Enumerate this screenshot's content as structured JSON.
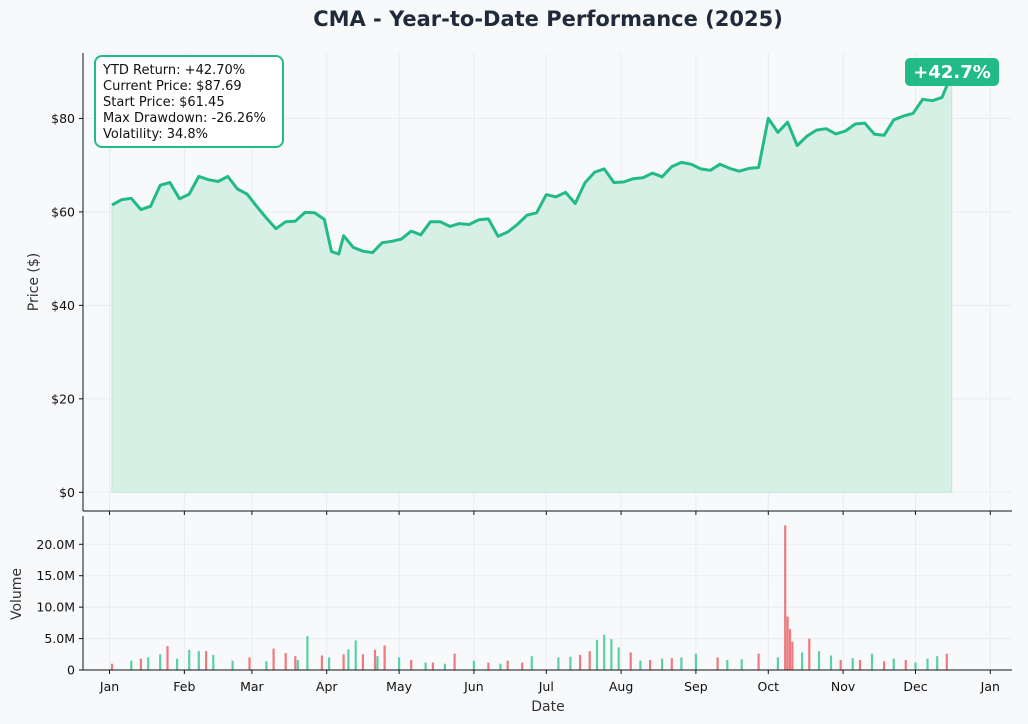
{
  "colors": {
    "line": "#22bb88",
    "fill": "#d6f0e6",
    "up_volume": "#5ccfa6",
    "down_volume": "#ee7a7d",
    "badge": "#22bb88",
    "grid": "#e9ecf1"
  },
  "chart_data": [
    {
      "type": "area",
      "title": "CMA - Year-to-Date Performance (2025)",
      "ylabel": "Price ($)",
      "ylim": [
        -4,
        94
      ],
      "y_ticks": [
        0,
        20,
        40,
        60,
        80
      ],
      "y_tick_labels": [
        "$0",
        "$20",
        "$40",
        "$60",
        "$80"
      ],
      "x_ticks": [
        "2025-01-01",
        "2025-02-01",
        "2025-03-01",
        "2025-04-01",
        "2025-05-01",
        "2025-06-01",
        "2025-07-01",
        "2025-08-01",
        "2025-09-01",
        "2025-10-01",
        "2025-11-01",
        "2025-12-01",
        "2026-01-01"
      ],
      "x_tick_labels": [
        "Jan",
        "Feb",
        "Mar",
        "Apr",
        "May",
        "Jun",
        "Jul",
        "Aug",
        "Sep",
        "Oct",
        "Nov",
        "Dec",
        "Jan"
      ],
      "grid": true,
      "stats": [
        "YTD Return: +42.70%",
        "Current Price: $87.69",
        "Start Price: $61.45",
        "Max Drawdown: -26.26%",
        "Volatility: 34.8%"
      ],
      "badge": "+42.7%",
      "series": [
        {
          "x": [
            "2025-01-02",
            "2025-01-06",
            "2025-01-10",
            "2025-01-14",
            "2025-01-18",
            "2025-01-22",
            "2025-01-26",
            "2025-01-30",
            "2025-02-03",
            "2025-02-07",
            "2025-02-11",
            "2025-02-15",
            "2025-02-19",
            "2025-02-23",
            "2025-02-27",
            "2025-03-03",
            "2025-03-07",
            "2025-03-11",
            "2025-03-15",
            "2025-03-19",
            "2025-03-23",
            "2025-03-27",
            "2025-03-31",
            "2025-04-03",
            "2025-04-06",
            "2025-04-08",
            "2025-04-12",
            "2025-04-16",
            "2025-04-20",
            "2025-04-24",
            "2025-04-28",
            "2025-05-02",
            "2025-05-06",
            "2025-05-10",
            "2025-05-14",
            "2025-05-18",
            "2025-05-22",
            "2025-05-26",
            "2025-05-30",
            "2025-06-03",
            "2025-06-07",
            "2025-06-11",
            "2025-06-15",
            "2025-06-19",
            "2025-06-23",
            "2025-06-27",
            "2025-07-01",
            "2025-07-05",
            "2025-07-09",
            "2025-07-13",
            "2025-07-17",
            "2025-07-21",
            "2025-07-25",
            "2025-07-29",
            "2025-08-02",
            "2025-08-06",
            "2025-08-10",
            "2025-08-14",
            "2025-08-18",
            "2025-08-22",
            "2025-08-26",
            "2025-08-30",
            "2025-09-03",
            "2025-09-07",
            "2025-09-11",
            "2025-09-15",
            "2025-09-19",
            "2025-09-23",
            "2025-09-27",
            "2025-10-01",
            "2025-10-05",
            "2025-10-09",
            "2025-10-13",
            "2025-10-17",
            "2025-10-21",
            "2025-10-25",
            "2025-10-29",
            "2025-11-02",
            "2025-11-06",
            "2025-11-10",
            "2025-11-14",
            "2025-11-18",
            "2025-11-22",
            "2025-11-26",
            "2025-11-30",
            "2025-12-04",
            "2025-12-08",
            "2025-12-12",
            "2025-12-16"
          ],
          "y": [
            61.5,
            62.6,
            62.9,
            60.5,
            61.2,
            65.7,
            66.3,
            62.8,
            63.8,
            67.6,
            66.9,
            66.5,
            67.6,
            64.9,
            63.8,
            61.2,
            58.7,
            56.4,
            57.9,
            58.0,
            59.9,
            59.8,
            58.4,
            51.5,
            51.0,
            54.9,
            52.4,
            51.6,
            51.3,
            53.4,
            53.7,
            54.2,
            55.9,
            55.1,
            57.9,
            57.9,
            56.9,
            57.5,
            57.3,
            58.3,
            58.5,
            54.8,
            55.7,
            57.3,
            59.3,
            59.8,
            63.7,
            63.2,
            64.2,
            61.8,
            66.2,
            68.5,
            69.2,
            66.3,
            66.4,
            67.1,
            67.3,
            68.3,
            67.5,
            69.7,
            70.6,
            70.2,
            69.2,
            68.9,
            70.2,
            69.3,
            68.7,
            69.3,
            69.5,
            80.0,
            77.0,
            79.2,
            74.2,
            76.2,
            77.5,
            77.8,
            76.7,
            77.3,
            78.8,
            79.0,
            76.6,
            76.4,
            79.7,
            80.5,
            81.1,
            84.1,
            83.8,
            84.5,
            89.5
          ]
        }
      ]
    },
    {
      "type": "bar",
      "xlabel": "Date",
      "ylabel": "Volume",
      "ylim": [
        0,
        24.5
      ],
      "y_ticks": [
        0,
        5,
        10,
        15,
        20
      ],
      "y_tick_labels": [
        "0",
        "5.0M",
        "10.0M",
        "15.0M",
        "20.0M"
      ],
      "x_ticks": [
        "2025-01-01",
        "2025-02-01",
        "2025-03-01",
        "2025-04-01",
        "2025-05-01",
        "2025-06-01",
        "2025-07-01",
        "2025-08-01",
        "2025-09-01",
        "2025-10-01",
        "2025-11-01",
        "2025-12-01",
        "2026-01-01"
      ],
      "x_tick_labels": [
        "Jan",
        "Feb",
        "Mar",
        "Apr",
        "May",
        "Jun",
        "Jul",
        "Aug",
        "Sep",
        "Oct",
        "Nov",
        "Dec",
        "Jan"
      ],
      "grid": true,
      "series": [
        {
          "name": "up",
          "points": [
            [
              "2025-01-10",
              1.5
            ],
            [
              "2025-01-17",
              2.0
            ],
            [
              "2025-01-22",
              2.5
            ],
            [
              "2025-01-29",
              1.8
            ],
            [
              "2025-02-03",
              3.2
            ],
            [
              "2025-02-07",
              3.0
            ],
            [
              "2025-02-13",
              2.4
            ],
            [
              "2025-02-21",
              1.5
            ],
            [
              "2025-03-07",
              1.4
            ],
            [
              "2025-03-20",
              1.6
            ],
            [
              "2025-03-24",
              5.4
            ],
            [
              "2025-04-02",
              2.0
            ],
            [
              "2025-04-10",
              3.3
            ],
            [
              "2025-04-13",
              4.7
            ],
            [
              "2025-04-22",
              2.2
            ],
            [
              "2025-05-01",
              2.0
            ],
            [
              "2025-05-12",
              1.2
            ],
            [
              "2025-05-20",
              1.0
            ],
            [
              "2025-06-01",
              1.5
            ],
            [
              "2025-06-12",
              1.0
            ],
            [
              "2025-06-25",
              2.2
            ],
            [
              "2025-07-06",
              2.0
            ],
            [
              "2025-07-11",
              2.1
            ],
            [
              "2025-07-22",
              4.8
            ],
            [
              "2025-07-25",
              5.6
            ],
            [
              "2025-07-28",
              4.9
            ],
            [
              "2025-07-31",
              3.6
            ],
            [
              "2025-08-09",
              1.5
            ],
            [
              "2025-08-18",
              1.8
            ],
            [
              "2025-08-26",
              2.0
            ],
            [
              "2025-09-01",
              2.6
            ],
            [
              "2025-09-14",
              1.6
            ],
            [
              "2025-09-20",
              1.7
            ],
            [
              "2025-10-05",
              2.0
            ],
            [
              "2025-10-15",
              2.8
            ],
            [
              "2025-10-22",
              3.0
            ],
            [
              "2025-10-27",
              2.3
            ],
            [
              "2025-11-05",
              1.9
            ],
            [
              "2025-11-13",
              2.6
            ],
            [
              "2025-11-22",
              1.8
            ],
            [
              "2025-12-01",
              1.2
            ],
            [
              "2025-12-06",
              1.8
            ],
            [
              "2025-12-10",
              2.2
            ]
          ]
        },
        {
          "name": "down",
          "points": [
            [
              "2025-01-02",
              1.0
            ],
            [
              "2025-01-14",
              1.8
            ],
            [
              "2025-01-25",
              3.8
            ],
            [
              "2025-02-10",
              3.0
            ],
            [
              "2025-02-28",
              2.0
            ],
            [
              "2025-03-10",
              3.4
            ],
            [
              "2025-03-15",
              2.7
            ],
            [
              "2025-03-19",
              2.2
            ],
            [
              "2025-03-30",
              2.3
            ],
            [
              "2025-04-08",
              2.5
            ],
            [
              "2025-04-16",
              2.5
            ],
            [
              "2025-04-21",
              3.2
            ],
            [
              "2025-04-25",
              3.9
            ],
            [
              "2025-05-06",
              1.6
            ],
            [
              "2025-05-15",
              1.2
            ],
            [
              "2025-05-24",
              2.6
            ],
            [
              "2025-06-07",
              1.2
            ],
            [
              "2025-06-15",
              1.5
            ],
            [
              "2025-06-21",
              1.2
            ],
            [
              "2025-07-15",
              2.4
            ],
            [
              "2025-07-19",
              3.0
            ],
            [
              "2025-08-05",
              2.8
            ],
            [
              "2025-08-13",
              1.6
            ],
            [
              "2025-08-22",
              1.9
            ],
            [
              "2025-09-10",
              2.0
            ],
            [
              "2025-09-27",
              2.6
            ],
            [
              "2025-10-08",
              23.0
            ],
            [
              "2025-10-09",
              8.5
            ],
            [
              "2025-10-10",
              6.5
            ],
            [
              "2025-10-11",
              4.5
            ],
            [
              "2025-10-18",
              5.0
            ],
            [
              "2025-10-31",
              1.6
            ],
            [
              "2025-11-08",
              1.6
            ],
            [
              "2025-11-18",
              1.4
            ],
            [
              "2025-11-27",
              1.6
            ],
            [
              "2025-12-14",
              2.6
            ]
          ]
        }
      ]
    }
  ]
}
